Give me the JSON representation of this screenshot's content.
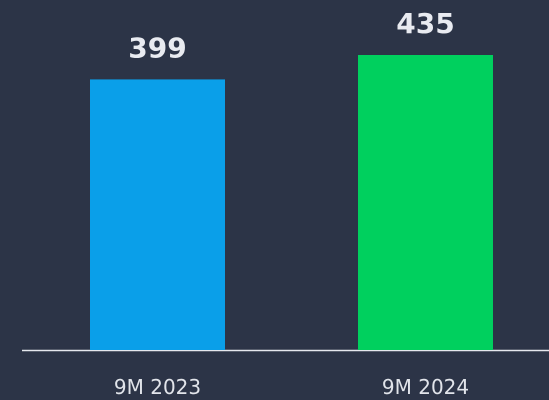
{
  "chart_data": {
    "type": "bar",
    "categories": [
      "9M 2023",
      "9M 2024"
    ],
    "values": [
      399,
      435
    ],
    "colors": [
      "#0a9fe9",
      "#00d05e"
    ]
  }
}
